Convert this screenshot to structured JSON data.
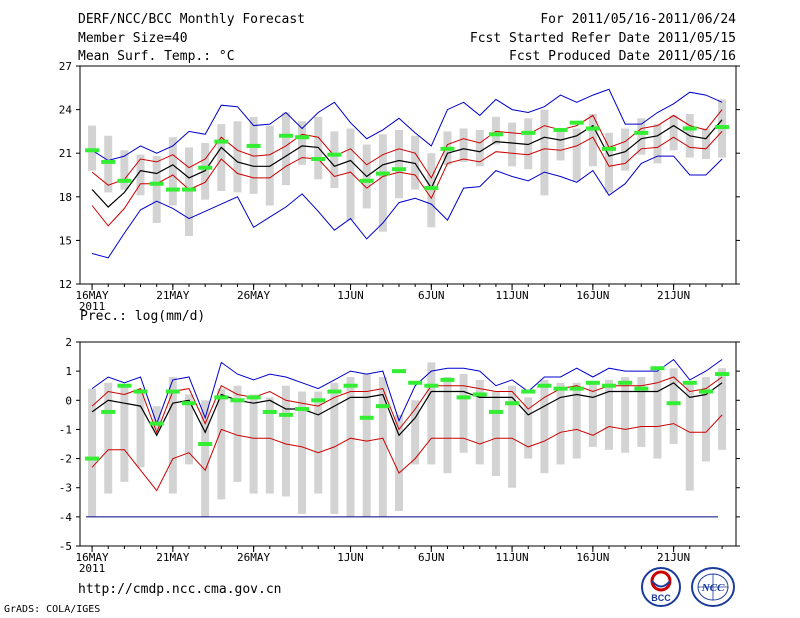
{
  "header": {
    "title": "DERF/NCC/BCC Monthly Forecast",
    "member_size": "Member Size=40",
    "variable": "Mean Surf. Temp.: °C",
    "forecast_for": "For 2011/05/16-2011/06/24",
    "fcst_started": "Fcst Started Refer Date 2011/05/15",
    "fcst_produced": "Fcst Produced Date 2011/05/16"
  },
  "footer": {
    "url": "http://cmdp.ncc.cma.gov.cn",
    "credit": "GrADS: COLA/IGES"
  },
  "logos": {
    "bcc": "BCC",
    "ncc": "NCC"
  },
  "colors": {
    "box": "#d3d3d3",
    "envelope": "#0000cc",
    "spread": "#cc0000",
    "mean": "#000000",
    "obs": "#33ee33",
    "baseline": "#000088"
  },
  "chart_data": [
    {
      "type": "line",
      "title": "Mean Surf. Temp.: °C",
      "xlabel": "",
      "ylabel": "",
      "ylim": [
        12,
        27
      ],
      "yticks": [
        12,
        15,
        18,
        21,
        24,
        27
      ],
      "xtick_labels": [
        {
          "index": 0,
          "label": "16MAY",
          "sub": "2011"
        },
        {
          "index": 5,
          "label": "21MAY"
        },
        {
          "index": 10,
          "label": "26MAY"
        },
        {
          "index": 16,
          "label": "1JUN"
        },
        {
          "index": 21,
          "label": "6JUN"
        },
        {
          "index": 26,
          "label": "11JUN"
        },
        {
          "index": 31,
          "label": "16JUN"
        },
        {
          "index": 36,
          "label": "21JUN"
        }
      ],
      "days": 40,
      "series": [
        {
          "name": "max",
          "values": [
            14.1,
            13.8,
            15.5,
            17.1,
            17.7,
            17.2,
            16.5,
            17.0,
            17.5,
            18.0,
            15.9,
            16.6,
            17.3,
            18.2,
            17.0,
            15.7,
            16.5,
            15.1,
            16.2,
            17.6,
            17.9,
            17.5,
            16.4,
            18.6,
            18.7,
            19.8,
            19.4,
            19.1,
            19.7,
            19.4,
            19.0,
            19.8,
            18.1,
            18.9,
            20.3,
            20.8,
            20.8,
            19.5,
            19.5,
            20.6
          ]
        },
        {
          "name": "min",
          "values": [
            21.2,
            20.5,
            20.8,
            21.5,
            21.0,
            21.5,
            22.5,
            22.3,
            24.3,
            24.2,
            22.9,
            23.0,
            23.8,
            22.7,
            23.8,
            24.5,
            23.1,
            22.0,
            22.6,
            23.4,
            22.4,
            21.5,
            24.0,
            24.5,
            23.6,
            24.7,
            24.0,
            23.8,
            24.2,
            25.0,
            24.5,
            25.0,
            25.4,
            23.0,
            23.0,
            23.8,
            24.4,
            25.2,
            25.0,
            24.5
          ]
        },
        {
          "name": "red_upper",
          "values": [
            19.7,
            18.8,
            19.2,
            20.6,
            20.4,
            20.9,
            20.0,
            20.6,
            22.1,
            21.2,
            20.8,
            20.9,
            21.5,
            22.3,
            22.1,
            20.8,
            21.3,
            20.2,
            20.9,
            21.3,
            21.0,
            19.3,
            21.6,
            22.0,
            21.7,
            22.5,
            22.4,
            22.3,
            22.9,
            22.6,
            22.9,
            23.6,
            21.4,
            21.8,
            22.7,
            22.9,
            23.6,
            22.9,
            22.6,
            24.0
          ]
        },
        {
          "name": "red_lower",
          "values": [
            17.4,
            16.0,
            17.2,
            18.9,
            18.9,
            19.5,
            18.5,
            19.0,
            20.6,
            19.6,
            19.3,
            19.3,
            20.1,
            20.7,
            20.6,
            19.4,
            19.7,
            18.6,
            19.4,
            19.7,
            19.5,
            17.9,
            20.3,
            20.6,
            20.4,
            21.1,
            21.0,
            20.9,
            21.3,
            21.2,
            21.5,
            22.1,
            20.1,
            20.3,
            21.3,
            21.4,
            22.1,
            21.4,
            21.3,
            22.5
          ]
        },
        {
          "name": "mean",
          "values": [
            18.5,
            17.3,
            18.3,
            19.8,
            19.6,
            20.2,
            19.3,
            19.8,
            21.4,
            20.4,
            20.1,
            20.1,
            20.8,
            21.5,
            21.4,
            20.1,
            20.5,
            19.4,
            20.2,
            20.5,
            20.3,
            18.6,
            21.0,
            21.3,
            21.1,
            21.8,
            21.7,
            21.6,
            22.1,
            21.9,
            22.2,
            22.9,
            20.8,
            21.1,
            22.0,
            22.2,
            22.9,
            22.2,
            22.0,
            23.3
          ]
        },
        {
          "name": "box_high",
          "values": [
            22.9,
            22.2,
            21.2,
            20.9,
            20.8,
            22.1,
            21.4,
            21.7,
            23.0,
            23.2,
            23.5,
            22.9,
            23.8,
            23.2,
            23.5,
            22.5,
            22.7,
            21.6,
            22.3,
            22.6,
            22.2,
            21.0,
            22.5,
            22.7,
            22.6,
            23.5,
            23.1,
            23.4,
            24.0,
            22.5,
            22.7,
            23.7,
            22.4,
            22.7,
            23.4,
            23.0,
            23.6,
            23.7,
            22.7,
            24.7
          ]
        },
        {
          "name": "box_low",
          "values": [
            19.8,
            18.3,
            18.5,
            18.1,
            16.2,
            17.4,
            15.3,
            17.8,
            18.4,
            18.3,
            18.2,
            17.4,
            18.8,
            20.2,
            19.2,
            18.6,
            16.4,
            17.2,
            15.6,
            17.9,
            18.5,
            15.9,
            20.2,
            20.4,
            20.1,
            21.6,
            20.1,
            19.9,
            18.1,
            20.5,
            19.1,
            20.1,
            18.3,
            19.8,
            20.9,
            20.3,
            21.2,
            20.7,
            20.6,
            20.7
          ]
        },
        {
          "name": "obs",
          "values": [
            21.2,
            20.4,
            19.1,
            null,
            18.9,
            18.5,
            18.5,
            20.0,
            21.8,
            null,
            21.5,
            null,
            22.2,
            22.1,
            20.6,
            20.9,
            null,
            19.1,
            19.6,
            19.9,
            null,
            18.6,
            21.3,
            null,
            null,
            22.3,
            null,
            22.4,
            null,
            22.6,
            23.1,
            22.7,
            21.3,
            null,
            22.4,
            null,
            null,
            22.7,
            null,
            22.8
          ]
        }
      ]
    },
    {
      "type": "line",
      "title": "Prec.: log(mm/d)",
      "xlabel": "",
      "ylabel": "",
      "ylim": [
        -5,
        2
      ],
      "yticks": [
        -5,
        -4,
        -3,
        -2,
        -1,
        0,
        1,
        2
      ],
      "baseline": -4,
      "xtick_labels": [
        {
          "index": 0,
          "label": "16MAY",
          "sub": "2011"
        },
        {
          "index": 5,
          "label": "21MAY"
        },
        {
          "index": 10,
          "label": "26MAY"
        },
        {
          "index": 16,
          "label": "1JUN"
        },
        {
          "index": 21,
          "label": "6JUN"
        },
        {
          "index": 26,
          "label": "11JUN"
        },
        {
          "index": 31,
          "label": "16JUN"
        },
        {
          "index": 36,
          "label": "21JUN"
        }
      ],
      "days": 40,
      "series": [
        {
          "name": "max",
          "values": [
            0.4,
            0.8,
            0.6,
            0.8,
            -0.8,
            0.7,
            0.8,
            -0.6,
            1.3,
            0.9,
            0.7,
            0.9,
            0.8,
            0.6,
            0.4,
            0.7,
            1.0,
            0.9,
            1.0,
            -0.7,
            0.5,
            1.0,
            1.1,
            1.1,
            1.0,
            0.5,
            0.7,
            0.3,
            0.8,
            0.8,
            1.1,
            0.8,
            1.1,
            1.0,
            1.0,
            1.0,
            1.4,
            0.7,
            1.0,
            1.4
          ]
        },
        {
          "name": "red_upper",
          "values": [
            -0.2,
            0.3,
            0.2,
            0.4,
            -1.1,
            0.3,
            0.4,
            -0.8,
            0.5,
            0.2,
            0.1,
            0.3,
            0.0,
            -0.1,
            -0.2,
            0.1,
            0.3,
            0.3,
            0.4,
            -1.0,
            -0.3,
            0.5,
            0.5,
            0.5,
            0.4,
            0.3,
            0.3,
            -0.3,
            0.1,
            0.4,
            0.5,
            0.3,
            0.5,
            0.5,
            0.5,
            0.6,
            0.8,
            0.3,
            0.4,
            0.8
          ]
        },
        {
          "name": "red_lower",
          "values": [
            -2.3,
            -1.7,
            -1.7,
            -2.4,
            -3.1,
            -2.0,
            -1.8,
            -2.4,
            -1.0,
            -1.2,
            -1.3,
            -1.3,
            -1.5,
            -1.6,
            -1.8,
            -1.6,
            -1.3,
            -1.4,
            -1.3,
            -2.5,
            -2.0,
            -1.3,
            -1.3,
            -1.3,
            -1.5,
            -1.3,
            -1.3,
            -1.6,
            -1.4,
            -1.1,
            -1.0,
            -1.2,
            -0.9,
            -1.0,
            -0.9,
            -0.9,
            -0.8,
            -1.1,
            -1.1,
            -0.5
          ]
        },
        {
          "name": "mean",
          "values": [
            -0.4,
            0.0,
            -0.1,
            -0.2,
            -1.2,
            -0.1,
            0.0,
            -1.1,
            0.2,
            0.0,
            -0.1,
            0.0,
            -0.3,
            -0.3,
            -0.5,
            -0.2,
            0.1,
            0.1,
            0.2,
            -1.2,
            -0.6,
            0.3,
            0.3,
            0.3,
            0.1,
            0.1,
            0.1,
            -0.5,
            -0.2,
            0.1,
            0.2,
            0.1,
            0.3,
            0.3,
            0.3,
            0.3,
            0.6,
            0.1,
            0.2,
            0.6
          ]
        },
        {
          "name": "box_high",
          "values": [
            0.4,
            0.6,
            0.5,
            0.4,
            -0.2,
            0.8,
            0.2,
            0.0,
            0.4,
            0.5,
            0.2,
            0.1,
            0.5,
            0.3,
            0.3,
            0.6,
            0.8,
            0.9,
            0.8,
            -0.5,
            0.0,
            1.3,
            0.8,
            0.9,
            0.7,
            0.3,
            0.5,
            0.1,
            0.7,
            0.6,
            0.6,
            0.6,
            0.7,
            0.8,
            0.8,
            1.0,
            1.1,
            0.6,
            0.8,
            1.1
          ]
        },
        {
          "name": "box_low",
          "values": [
            -3.0,
            -3.2,
            -2.8,
            -2.3,
            -1.0,
            -3.2,
            -2.2,
            -3.9,
            -3.4,
            -2.8,
            -3.2,
            -3.2,
            -3.3,
            -3.9,
            -3.2,
            -3.9,
            -4.0,
            -3.8,
            -3.9,
            -3.8,
            -2.2,
            -2.2,
            -2.5,
            -1.8,
            -2.2,
            -2.6,
            -3.0,
            -2.0,
            -2.5,
            -2.2,
            -2.0,
            -1.6,
            -1.7,
            -1.8,
            -1.6,
            -2.0,
            -1.5,
            -3.1,
            -2.1,
            -1.7
          ]
        },
        {
          "name": "box_low_ext",
          "values": [
            -4.0,
            null,
            null,
            null,
            null,
            null,
            null,
            -4.0,
            null,
            null,
            null,
            null,
            null,
            null,
            null,
            null,
            -4.0,
            -4.0,
            -4.0,
            null,
            null,
            null,
            null,
            null,
            null,
            null,
            null,
            null,
            null,
            null,
            null,
            null,
            null,
            null,
            null,
            null,
            null,
            null,
            null,
            null
          ]
        },
        {
          "name": "obs",
          "values": [
            -2.0,
            -0.4,
            0.5,
            0.3,
            -0.8,
            0.3,
            -0.1,
            -1.5,
            0.1,
            0.0,
            0.1,
            -0.4,
            -0.5,
            -0.3,
            0.0,
            0.3,
            0.5,
            -0.6,
            -0.2,
            1.0,
            0.6,
            0.5,
            0.7,
            0.1,
            0.2,
            -0.4,
            -0.1,
            0.3,
            0.5,
            0.4,
            0.4,
            0.6,
            0.5,
            0.6,
            0.4,
            1.1,
            -0.1,
            0.6,
            0.3,
            0.9
          ]
        }
      ]
    }
  ]
}
